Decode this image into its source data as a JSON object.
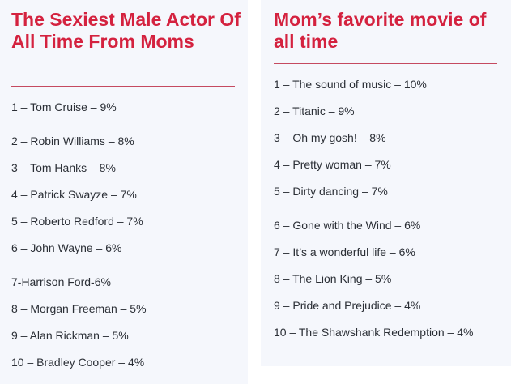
{
  "left": {
    "title": "The Sexiest Male Actor Of All Time From Moms",
    "items": [
      "1 – Tom Cruise – 9%",
      "2 – Robin Williams – 8%",
      "3 – Tom Hanks – 8%",
      "4 – Patrick Swayze – 7%",
      "5 – Roberto Redford – 7%",
      "6 – John Wayne – 6%",
      "7-Harrison Ford-6%",
      "8 – Morgan Freeman – 5%",
      "9 – Alan Rickman – 5%",
      "10 – Bradley Cooper – 4%"
    ]
  },
  "right": {
    "title": "Mom’s favorite movie of all time",
    "items": [
      "1 – The sound of music – 10%",
      "2 – Titanic – 9%",
      "3 – Oh my gosh! – 8%",
      "4 – Pretty woman – 7%",
      "5 – Dirty dancing – 7%",
      "6 – Gone with the Wind – 6%",
      "7 – It’s a wonderful life – 6%",
      "8 – The Lion King – 5%",
      "9 – Pride and Prejudice – 4%",
      "10 – The Shawshank Redemption – 4%"
    ]
  },
  "colors": {
    "title": "#d4223f",
    "divider": "#c54a60",
    "card_bg": "#f5f7fc",
    "text": "#2b2f36"
  }
}
